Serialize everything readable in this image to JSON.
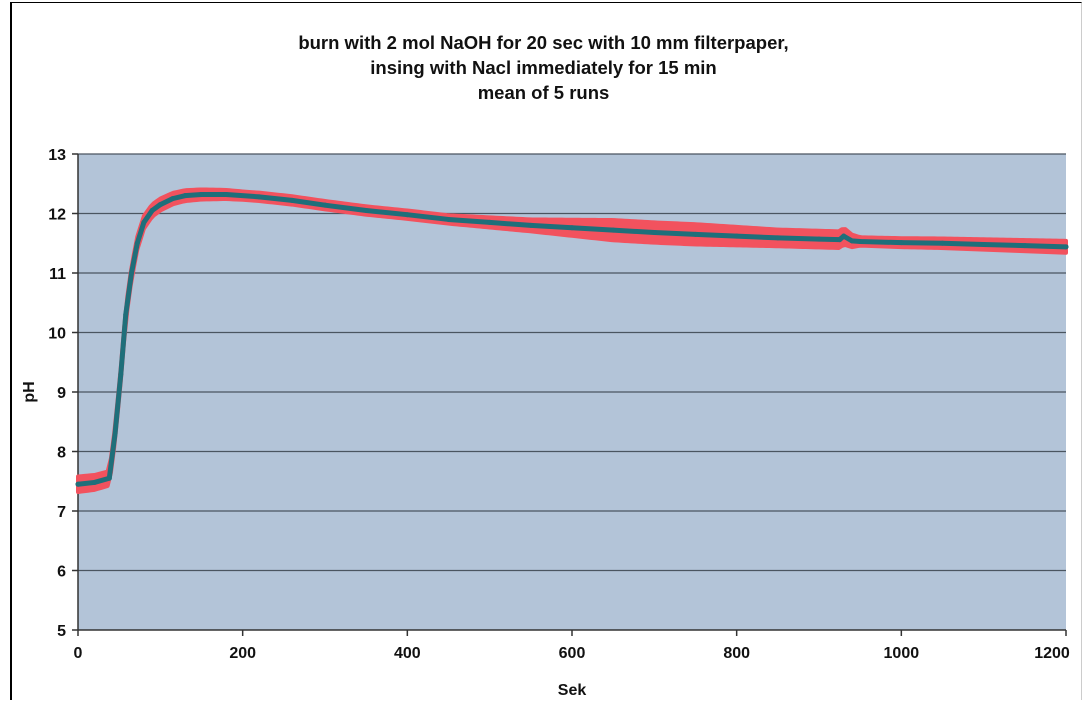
{
  "chart_data": {
    "type": "line",
    "title_lines": [
      "burn with 2 mol NaOH for 20 sec with 10 mm filterpaper,",
      "insing with  Nacl immediately for 15 min",
      "mean of 5 runs"
    ],
    "xlabel": "Sek",
    "ylabel": "pH",
    "xlim": [
      0,
      1200
    ],
    "ylim": [
      5,
      13
    ],
    "x_ticks": [
      0,
      200,
      400,
      600,
      800,
      1000,
      1200
    ],
    "y_ticks": [
      5,
      6,
      7,
      8,
      9,
      10,
      11,
      12,
      13
    ],
    "grid": "horizontal",
    "plot_background": "#b3c4d8",
    "colors": {
      "mean": "#1f6f7a",
      "band": "#f2525e"
    },
    "series": [
      {
        "x": [
          0,
          20,
          38,
          45,
          52,
          58,
          65,
          72,
          80,
          90,
          100,
          115,
          130,
          150,
          180,
          220,
          260,
          300,
          350,
          400,
          450,
          500,
          550,
          600,
          650,
          700,
          750,
          800,
          850,
          900,
          925,
          930,
          940,
          950,
          1000,
          1050,
          1100,
          1150,
          1200
        ],
        "y": [
          7.45,
          7.48,
          7.55,
          8.3,
          9.3,
          10.3,
          11.0,
          11.5,
          11.85,
          12.05,
          12.15,
          12.25,
          12.3,
          12.32,
          12.32,
          12.28,
          12.22,
          12.14,
          12.05,
          11.98,
          11.9,
          11.85,
          11.8,
          11.76,
          11.72,
          11.68,
          11.65,
          11.62,
          11.59,
          11.57,
          11.56,
          11.62,
          11.54,
          11.53,
          11.51,
          11.5,
          11.48,
          11.46,
          11.44
        ]
      }
    ],
    "band_halfwidth": {
      "x": [
        0,
        40,
        100,
        200,
        450,
        550,
        650,
        750,
        850,
        930,
        950,
        1050,
        1200
      ],
      "y": [
        0.13,
        0.12,
        0.1,
        0.07,
        0.07,
        0.1,
        0.17,
        0.17,
        0.14,
        0.14,
        0.07,
        0.08,
        0.1
      ]
    }
  }
}
